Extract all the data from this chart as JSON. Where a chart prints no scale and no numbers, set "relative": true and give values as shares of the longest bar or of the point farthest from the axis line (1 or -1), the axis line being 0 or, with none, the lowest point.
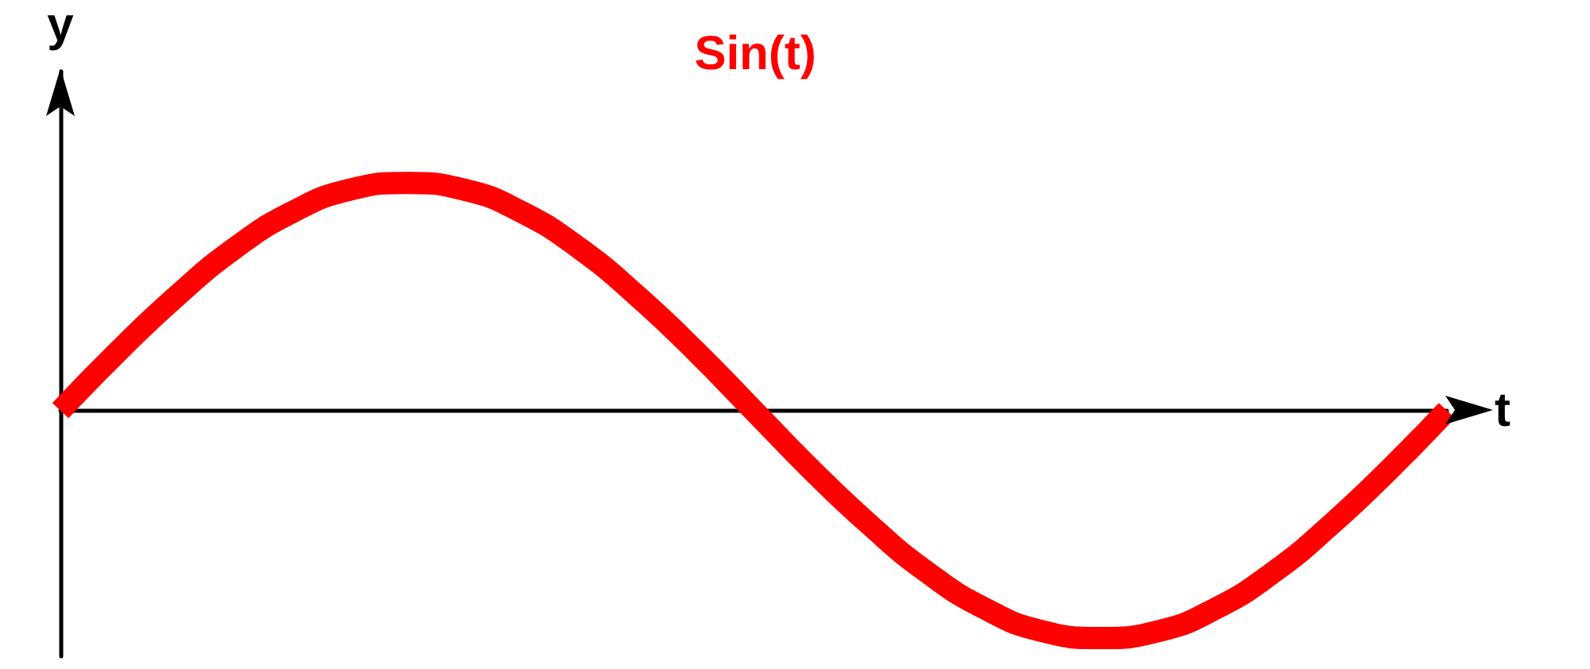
{
  "chart_data": {
    "type": "line",
    "title": "Sin(t)",
    "xlabel": "t",
    "ylabel": "y",
    "relative": true,
    "categories": [
      null,
      null,
      null,
      null,
      null,
      null,
      null,
      null,
      null,
      null,
      null,
      null,
      null,
      null,
      null,
      null,
      null,
      null,
      null,
      null,
      null,
      null,
      null,
      null,
      null
    ],
    "series": [
      {
        "color": "#ff0000",
        "values": [
          0,
          0.26,
          0.5,
          0.71,
          0.87,
          0.97,
          1,
          0.97,
          0.87,
          0.71,
          0.5,
          0.26,
          0,
          -0.26,
          -0.5,
          -0.71,
          -0.87,
          -0.97,
          -1,
          -0.97,
          -0.87,
          -0.71,
          -0.5,
          -0.26,
          0
        ]
      }
    ],
    "grid": false,
    "marker": "none",
    "line_style": "solid"
  }
}
